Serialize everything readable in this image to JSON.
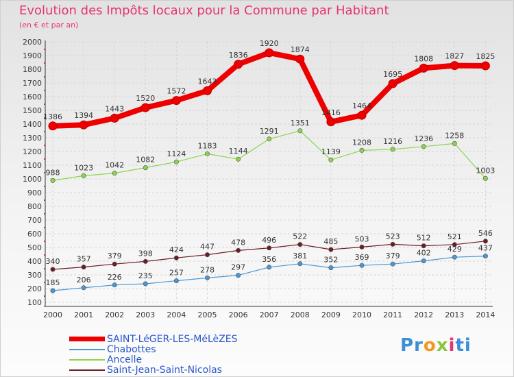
{
  "chart_data": {
    "type": "line",
    "title": "Evolution des Impôts locaux pour la Commune par Habitant",
    "subtitle": "(en € et par an)",
    "x": [
      "2000",
      "2001",
      "2002",
      "2003",
      "2004",
      "2005",
      "2006",
      "2007",
      "2008",
      "2009",
      "2010",
      "2011",
      "2012",
      "2013",
      "2014"
    ],
    "ylim": [
      100,
      2000
    ],
    "yticks": [
      100,
      200,
      300,
      400,
      500,
      600,
      700,
      800,
      900,
      1000,
      1100,
      1200,
      1300,
      1400,
      1500,
      1600,
      1700,
      1800,
      1900,
      2000
    ],
    "grid": true,
    "legend_position": "bottom-left",
    "series": [
      {
        "name": "SAINT-LéGER-LES-MéLèZES",
        "color": "#ee0000",
        "values": [
          1386,
          1394,
          1443,
          1520,
          1572,
          1643,
          1836,
          1920,
          1874,
          1416,
          1464,
          1695,
          1808,
          1827,
          1825
        ]
      },
      {
        "name": "Chabottes",
        "color": "#4b97d4",
        "values": [
          185,
          206,
          226,
          235,
          257,
          278,
          297,
          356,
          381,
          352,
          369,
          379,
          402,
          429,
          437
        ]
      },
      {
        "name": "Ancelle",
        "color": "#8cd44c",
        "values": [
          988,
          1023,
          1042,
          1082,
          1124,
          1183,
          1144,
          1291,
          1351,
          1139,
          1208,
          1216,
          1236,
          1258,
          1003
        ]
      },
      {
        "name": "Saint-Jean-Saint-Nicolas",
        "color": "#6b1c26",
        "values": [
          340,
          357,
          379,
          398,
          424,
          447,
          478,
          496,
          522,
          485,
          503,
          523,
          512,
          521,
          546
        ]
      }
    ]
  },
  "logo": {
    "parts": [
      "Pr",
      "o",
      "x",
      "i",
      "ti"
    ],
    "colors": [
      "#3a8fd6",
      "#f2961f",
      "#8ac43f",
      "#e8336e",
      "#3a8fd6"
    ]
  }
}
